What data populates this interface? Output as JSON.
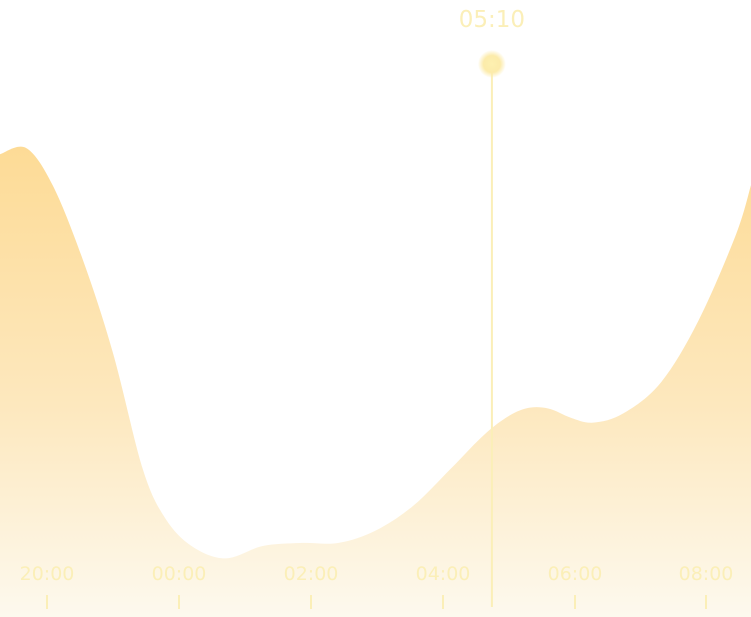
{
  "chart_data": {
    "type": "area",
    "x_ticks": [
      "20:00",
      "00:00",
      "02:00",
      "04:00",
      "06:00",
      "08:00"
    ],
    "series": [
      {
        "points": [
          [
            0,
            0.75
          ],
          [
            0.35,
            0.76
          ],
          [
            0.7,
            0.7
          ],
          [
            1.1,
            0.58
          ],
          [
            1.5,
            0.43
          ],
          [
            1.9,
            0.24
          ],
          [
            2.2,
            0.16
          ],
          [
            2.55,
            0.115
          ],
          [
            3.0,
            0.095
          ],
          [
            3.5,
            0.115
          ],
          [
            4.0,
            0.12
          ],
          [
            4.5,
            0.12
          ],
          [
            5.0,
            0.14
          ],
          [
            5.5,
            0.18
          ],
          [
            6.0,
            0.24
          ],
          [
            6.4,
            0.29
          ],
          [
            6.7,
            0.32
          ],
          [
            7.0,
            0.338
          ],
          [
            7.3,
            0.338
          ],
          [
            7.6,
            0.323
          ],
          [
            7.9,
            0.315
          ],
          [
            8.3,
            0.33
          ],
          [
            8.8,
            0.38
          ],
          [
            9.3,
            0.48
          ],
          [
            9.8,
            0.62
          ],
          [
            10.0,
            0.7
          ]
        ]
      }
    ],
    "marker": {
      "label": "05:10",
      "x": 6.55
    },
    "fill_colors": {
      "top": "#fddb96",
      "bottom": "#fdf9ee"
    },
    "accent": "#fbefb8"
  }
}
